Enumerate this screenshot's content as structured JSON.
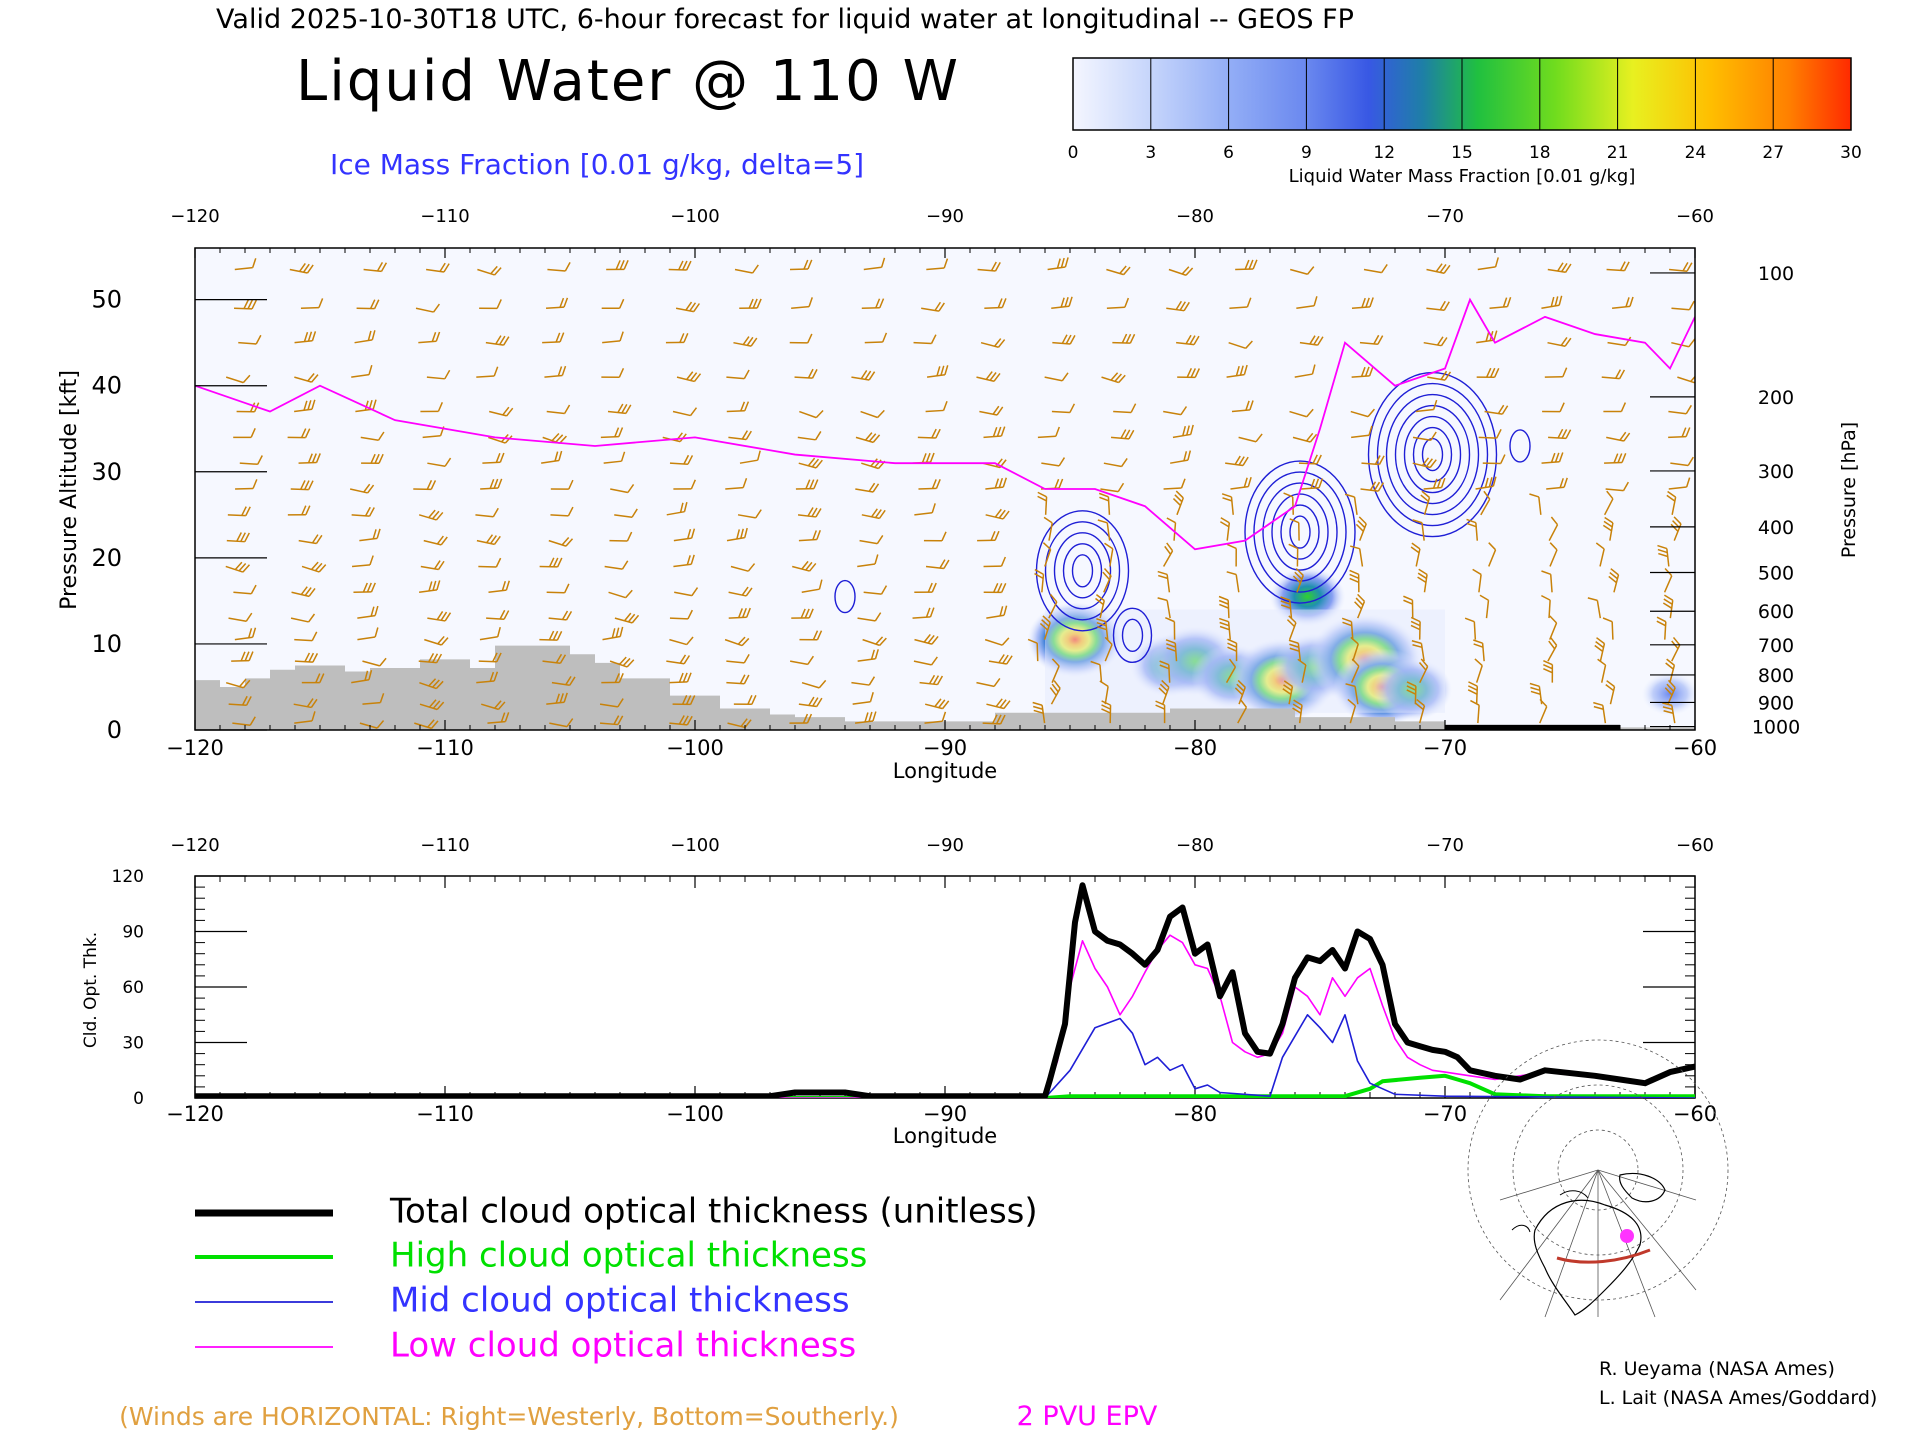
{
  "header": {
    "valid_line": "Valid 2025-10-30T18 UTC, 6-hour forecast for liquid water at longitudinal -- GEOS FP",
    "main_title": "Liquid Water @ 110 W",
    "ice_label": "Ice Mass Fraction [0.01 g/kg, delta=5]"
  },
  "colorbar": {
    "ticks": [
      "0",
      "3",
      "6",
      "9",
      "12",
      "15",
      "18",
      "21",
      "24",
      "27",
      "30"
    ],
    "label": "Liquid Water Mass Fraction [0.01 g/kg]",
    "colors": [
      "#eef2ff",
      "#c4d4fb",
      "#93aef6",
      "#5f80ee",
      "#2f55e0",
      "#1c8a90",
      "#22cc3a",
      "#8fe020",
      "#eaf222",
      "#ffb800",
      "#ff7a00",
      "#ff2a00"
    ]
  },
  "colors": {
    "wind_barb": "#c8820a",
    "epv": "#ff00ff",
    "ice_contour": "#1f1fd6",
    "terrain": "#bebebe",
    "total_line": "#000000",
    "high_line": "#00e000",
    "mid_line": "#1f1fd6",
    "low_line": "#ff00ff"
  },
  "chart_data": [
    {
      "type": "heatmap",
      "title": "Liquid Water @ 110 W",
      "xlabel": "Longitude",
      "ylabel": "Pressure Altitude [kft]",
      "ylabel_right": "Pressure [hPa]",
      "xlim": [
        -120,
        -60
      ],
      "ylim": [
        0,
        56
      ],
      "xticks": [
        -120,
        -110,
        -100,
        -90,
        -80,
        -70,
        -60
      ],
      "xtick_labels": [
        "−120",
        "−110",
        "−100",
        "−90",
        "−80",
        "−70",
        "−60"
      ],
      "yticks": [
        0,
        10,
        20,
        30,
        40,
        50
      ],
      "right_ticks": [
        {
          "label": "100",
          "kft": 53.1
        },
        {
          "label": "200",
          "kft": 38.7
        },
        {
          "label": "300",
          "kft": 30.1
        },
        {
          "label": "400",
          "kft": 23.6
        },
        {
          "label": "500",
          "kft": 18.3
        },
        {
          "label": "600",
          "kft": 13.8
        },
        {
          "label": "700",
          "kft": 9.9
        },
        {
          "label": "800",
          "kft": 6.4
        },
        {
          "label": "900",
          "kft": 3.2
        },
        {
          "label": "1000",
          "kft": 0.4
        }
      ],
      "terrain": [
        {
          "lon": -120,
          "kft": 5.8
        },
        {
          "lon": -119,
          "kft": 5.0
        },
        {
          "lon": -118,
          "kft": 6.0
        },
        {
          "lon": -117,
          "kft": 7.0
        },
        {
          "lon": -116,
          "kft": 7.5
        },
        {
          "lon": -114,
          "kft": 6.8
        },
        {
          "lon": -113,
          "kft": 7.2
        },
        {
          "lon": -111,
          "kft": 8.2
        },
        {
          "lon": -109,
          "kft": 7.2
        },
        {
          "lon": -108,
          "kft": 9.8
        },
        {
          "lon": -105.5,
          "kft": 9.8
        },
        {
          "lon": -105,
          "kft": 8.8
        },
        {
          "lon": -104,
          "kft": 7.8
        },
        {
          "lon": -103,
          "kft": 6.0
        },
        {
          "lon": -101,
          "kft": 4.0
        },
        {
          "lon": -99,
          "kft": 2.5
        },
        {
          "lon": -97,
          "kft": 1.8
        },
        {
          "lon": -96,
          "kft": 1.5
        },
        {
          "lon": -94,
          "kft": 1.0
        },
        {
          "lon": -88,
          "kft": 2.0
        },
        {
          "lon": -81,
          "kft": 2.5
        },
        {
          "lon": -76,
          "kft": 1.5
        },
        {
          "lon": -72,
          "kft": 1.0
        },
        {
          "lon": -70,
          "kft": 0.3
        },
        {
          "lon": -60,
          "kft": 0.3
        }
      ],
      "epv_2pvu": [
        {
          "lon": -120,
          "kft": 40
        },
        {
          "lon": -118,
          "kft": 38
        },
        {
          "lon": -117,
          "kft": 37
        },
        {
          "lon": -115,
          "kft": 40
        },
        {
          "lon": -112,
          "kft": 36
        },
        {
          "lon": -108,
          "kft": 34
        },
        {
          "lon": -104,
          "kft": 33
        },
        {
          "lon": -100,
          "kft": 34
        },
        {
          "lon": -96,
          "kft": 32
        },
        {
          "lon": -92,
          "kft": 31
        },
        {
          "lon": -88,
          "kft": 31
        },
        {
          "lon": -86,
          "kft": 28
        },
        {
          "lon": -84,
          "kft": 28
        },
        {
          "lon": -82,
          "kft": 26
        },
        {
          "lon": -80,
          "kft": 21
        },
        {
          "lon": -78,
          "kft": 22
        },
        {
          "lon": -76,
          "kft": 26
        },
        {
          "lon": -75,
          "kft": 35
        },
        {
          "lon": -74,
          "kft": 45
        },
        {
          "lon": -72,
          "kft": 40
        },
        {
          "lon": -70,
          "kft": 42
        },
        {
          "lon": -69,
          "kft": 50
        },
        {
          "lon": -68,
          "kft": 45
        },
        {
          "lon": -66,
          "kft": 48
        },
        {
          "lon": -64,
          "kft": 46
        },
        {
          "lon": -62,
          "kft": 45
        },
        {
          "lon": -61,
          "kft": 42
        },
        {
          "lon": -60,
          "kft": 48
        }
      ],
      "liquid_water_blobs": [
        {
          "lon": -84.8,
          "kft": 10.5,
          "peak": 21
        },
        {
          "lon": -81,
          "kft": 7.5,
          "peak": 16
        },
        {
          "lon": -80,
          "kft": 8,
          "peak": 19
        },
        {
          "lon": -78.5,
          "kft": 6.2,
          "peak": 17
        },
        {
          "lon": -76.5,
          "kft": 5.8,
          "peak": 24
        },
        {
          "lon": -75.2,
          "kft": 7.3,
          "peak": 18
        },
        {
          "lon": -73.2,
          "kft": 8.2,
          "peak": 27
        },
        {
          "lon": -72.5,
          "kft": 5.0,
          "peak": 22
        },
        {
          "lon": -71.3,
          "kft": 4.7,
          "peak": 16
        },
        {
          "lon": -75.5,
          "kft": 15.5,
          "peak": 15
        },
        {
          "lon": -61,
          "kft": 4.2,
          "peak": 9
        }
      ],
      "ice_contours": [
        {
          "lon": -84.5,
          "kft": 18.5,
          "levels": 5
        },
        {
          "lon": -75.8,
          "kft": 23,
          "levels": 6
        },
        {
          "lon": -70.5,
          "kft": 32,
          "levels": 7
        },
        {
          "lon": -82.5,
          "kft": 11,
          "levels": 2
        },
        {
          "lon": -94,
          "kft": 15.5,
          "levels": 1
        },
        {
          "lon": -67,
          "kft": 33,
          "levels": 1
        }
      ]
    },
    {
      "type": "line",
      "xlabel": "Longitude",
      "ylabel": "Cld. Opt. Thk.",
      "xlim": [
        -120,
        -60
      ],
      "ylim": [
        0,
        120
      ],
      "xticks": [
        -120,
        -110,
        -100,
        -90,
        -80,
        -70,
        -60
      ],
      "yticks": [
        0,
        30,
        60,
        90,
        120
      ],
      "series": [
        {
          "name": "Total cloud optical thickness (unitless)",
          "values": [
            [
              -120,
              1
            ],
            [
              -97,
              1
            ],
            [
              -96,
              3
            ],
            [
              -94,
              3
            ],
            [
              -93,
              1
            ],
            [
              -86,
              1
            ],
            [
              -85.8,
              10
            ],
            [
              -85.2,
              40
            ],
            [
              -84.8,
              95
            ],
            [
              -84.5,
              115
            ],
            [
              -84,
              90
            ],
            [
              -83.5,
              85
            ],
            [
              -83,
              83
            ],
            [
              -82.5,
              78
            ],
            [
              -82,
              72
            ],
            [
              -81.5,
              80
            ],
            [
              -81,
              98
            ],
            [
              -80.5,
              103
            ],
            [
              -80,
              78
            ],
            [
              -79.5,
              83
            ],
            [
              -79,
              55
            ],
            [
              -78.5,
              68
            ],
            [
              -78,
              35
            ],
            [
              -77.5,
              25
            ],
            [
              -77,
              24
            ],
            [
              -76.5,
              40
            ],
            [
              -76,
              65
            ],
            [
              -75.5,
              76
            ],
            [
              -75,
              74
            ],
            [
              -74.5,
              80
            ],
            [
              -74,
              70
            ],
            [
              -73.5,
              90
            ],
            [
              -73,
              86
            ],
            [
              -72.5,
              72
            ],
            [
              -72,
              40
            ],
            [
              -71.5,
              30
            ],
            [
              -71,
              28
            ],
            [
              -70.5,
              26
            ],
            [
              -70,
              25
            ],
            [
              -69.5,
              22
            ],
            [
              -69,
              15
            ],
            [
              -68,
              12
            ],
            [
              -67,
              10
            ],
            [
              -66,
              15
            ],
            [
              -64,
              12
            ],
            [
              -63,
              10
            ],
            [
              -62,
              8
            ],
            [
              -61,
              14
            ],
            [
              -60,
              17
            ]
          ]
        },
        {
          "name": "High cloud optical thickness",
          "values": [
            [
              -120,
              0
            ],
            [
              -86,
              0
            ],
            [
              -85,
              1
            ],
            [
              -82,
              1
            ],
            [
              -79,
              1
            ],
            [
              -76,
              1
            ],
            [
              -74,
              1
            ],
            [
              -73,
              5
            ],
            [
              -72.5,
              9
            ],
            [
              -71,
              11
            ],
            [
              -70,
              12
            ],
            [
              -69.5,
              10
            ],
            [
              -69,
              8
            ],
            [
              -68,
              2
            ],
            [
              -66,
              1
            ],
            [
              -60,
              1
            ]
          ]
        },
        {
          "name": "Mid cloud optical thickness",
          "values": [
            [
              -120,
              0
            ],
            [
              -97,
              0
            ],
            [
              -96,
              2
            ],
            [
              -94,
              2
            ],
            [
              -93,
              0
            ],
            [
              -86,
              0
            ],
            [
              -85,
              15
            ],
            [
              -84,
              38
            ],
            [
              -83,
              43
            ],
            [
              -82.5,
              35
            ],
            [
              -82,
              18
            ],
            [
              -81.5,
              22
            ],
            [
              -81,
              15
            ],
            [
              -80.5,
              18
            ],
            [
              -80,
              5
            ],
            [
              -79.5,
              7
            ],
            [
              -79,
              3
            ],
            [
              -77,
              1
            ],
            [
              -76.5,
              22
            ],
            [
              -75.5,
              45
            ],
            [
              -75,
              38
            ],
            [
              -74.5,
              30
            ],
            [
              -74,
              45
            ],
            [
              -73.5,
              20
            ],
            [
              -73,
              8
            ],
            [
              -72,
              2
            ],
            [
              -70,
              1
            ],
            [
              -60,
              0
            ]
          ]
        },
        {
          "name": "Low cloud optical thickness",
          "values": [
            [
              -120,
              0
            ],
            [
              -86,
              0
            ],
            [
              -85.5,
              20
            ],
            [
              -85,
              60
            ],
            [
              -84.5,
              85
            ],
            [
              -84,
              70
            ],
            [
              -83.5,
              60
            ],
            [
              -83,
              45
            ],
            [
              -82.5,
              55
            ],
            [
              -82,
              68
            ],
            [
              -81.5,
              80
            ],
            [
              -81,
              88
            ],
            [
              -80.5,
              84
            ],
            [
              -80,
              72
            ],
            [
              -79.5,
              70
            ],
            [
              -79,
              55
            ],
            [
              -78.5,
              30
            ],
            [
              -78,
              25
            ],
            [
              -77.5,
              22
            ],
            [
              -77,
              24
            ],
            [
              -76.5,
              35
            ],
            [
              -76,
              60
            ],
            [
              -75.5,
              55
            ],
            [
              -75,
              45
            ],
            [
              -74.5,
              65
            ],
            [
              -74,
              55
            ],
            [
              -73.5,
              65
            ],
            [
              -73,
              70
            ],
            [
              -72.5,
              50
            ],
            [
              -72,
              32
            ],
            [
              -71.5,
              22
            ],
            [
              -71,
              18
            ],
            [
              -70.5,
              15
            ],
            [
              -70,
              14
            ],
            [
              -69,
              12
            ],
            [
              -68,
              10
            ],
            [
              -67,
              12
            ],
            [
              -66,
              14
            ],
            [
              -64,
              11
            ],
            [
              -63,
              9
            ],
            [
              -62,
              7
            ],
            [
              -61,
              13
            ],
            [
              -60,
              16
            ]
          ]
        }
      ]
    }
  ],
  "legend": {
    "items": [
      {
        "label": "Total cloud optical thickness (unitless)",
        "color": "#000000",
        "width": 6
      },
      {
        "label": "High cloud optical thickness",
        "color": "#00e000",
        "width": 4
      },
      {
        "label": "Mid cloud optical thickness",
        "color": "#1f1fd6",
        "width": 1.5
      },
      {
        "label": "Low cloud optical thickness",
        "color": "#ff00ff",
        "width": 1.5
      }
    ]
  },
  "footer": {
    "winds_note": "(Winds are HORIZONTAL: Right=Westerly, Bottom=Southerly.)",
    "epv_label": "2 PVU EPV",
    "credit1": "R. Ueyama (NASA Ames)",
    "credit2": "L. Lait (NASA Ames/Goddard)"
  },
  "map_inset": {
    "icon": "polar-map-icon"
  }
}
